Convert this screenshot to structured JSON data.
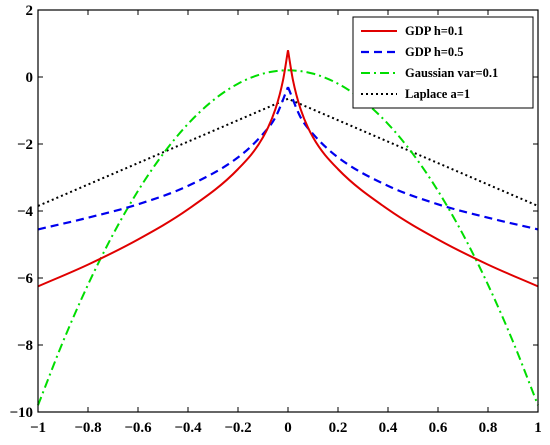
{
  "chart_data": {
    "type": "line",
    "title": "",
    "xlabel": "",
    "ylabel": "",
    "xlim": [
      -1,
      1
    ],
    "ylim": [
      -10,
      2
    ],
    "xticks": [
      -1,
      -0.8,
      -0.6,
      -0.4,
      -0.2,
      0,
      0.2,
      0.4,
      0.6,
      0.8,
      1
    ],
    "xtick_labels": [
      "−1",
      "−0.8",
      "−0.6",
      "−0.4",
      "−0.2",
      "0",
      "0.2",
      "0.4",
      "0.6",
      "0.8",
      "1"
    ],
    "yticks": [
      -10,
      -8,
      -6,
      -4,
      -2,
      0,
      2
    ],
    "ytick_labels": [
      "−10",
      "−8",
      "−6",
      "−4",
      "−2",
      "0",
      "2"
    ],
    "grid": false,
    "legend_position": "top-right",
    "series": [
      {
        "name": "GDP h=0.1",
        "color": "#e00000",
        "style": "solid",
        "x": [
          -1,
          -0.8,
          -0.6,
          -0.4,
          -0.2,
          -0.1,
          -0.05,
          -0.02,
          0,
          0.02,
          0.05,
          0.1,
          0.2,
          0.4,
          0.6,
          0.8,
          1
        ],
        "y": [
          -6.25,
          -5.6,
          -4.85,
          -3.95,
          -2.75,
          -1.8,
          -0.95,
          -0.1,
          0.8,
          -0.1,
          -0.95,
          -1.8,
          -2.75,
          -3.95,
          -4.85,
          -5.6,
          -6.25
        ]
      },
      {
        "name": "GDP h=0.5",
        "color": "#0000ee",
        "style": "dashed",
        "x": [
          -1,
          -0.8,
          -0.6,
          -0.4,
          -0.2,
          -0.1,
          -0.05,
          0,
          0.05,
          0.1,
          0.2,
          0.4,
          0.6,
          0.8,
          1
        ],
        "y": [
          -4.55,
          -4.2,
          -3.8,
          -3.25,
          -2.4,
          -1.7,
          -1.2,
          -0.3,
          -1.2,
          -1.7,
          -2.4,
          -3.25,
          -3.8,
          -4.2,
          -4.55
        ]
      },
      {
        "name": "Gaussian var=0.1",
        "color": "#00dd00",
        "style": "dashdot",
        "x": [
          -1,
          -0.9,
          -0.8,
          -0.7,
          -0.6,
          -0.5,
          -0.4,
          -0.3,
          -0.2,
          -0.1,
          0,
          0.1,
          0.2,
          0.3,
          0.4,
          0.5,
          0.6,
          0.7,
          0.8,
          0.9,
          1
        ],
        "y": [
          -9.8,
          -7.9,
          -6.2,
          -4.7,
          -3.4,
          -2.3,
          -1.4,
          -0.7,
          -0.2,
          0.1,
          0.2,
          0.1,
          -0.2,
          -0.7,
          -1.4,
          -2.3,
          -3.4,
          -4.7,
          -6.2,
          -7.9,
          -9.8
        ]
      },
      {
        "name": "Laplace a=1",
        "color": "#000000",
        "style": "dotted",
        "x": [
          -1,
          0,
          1
        ],
        "y": [
          -3.85,
          -0.65,
          -3.85
        ]
      }
    ]
  }
}
